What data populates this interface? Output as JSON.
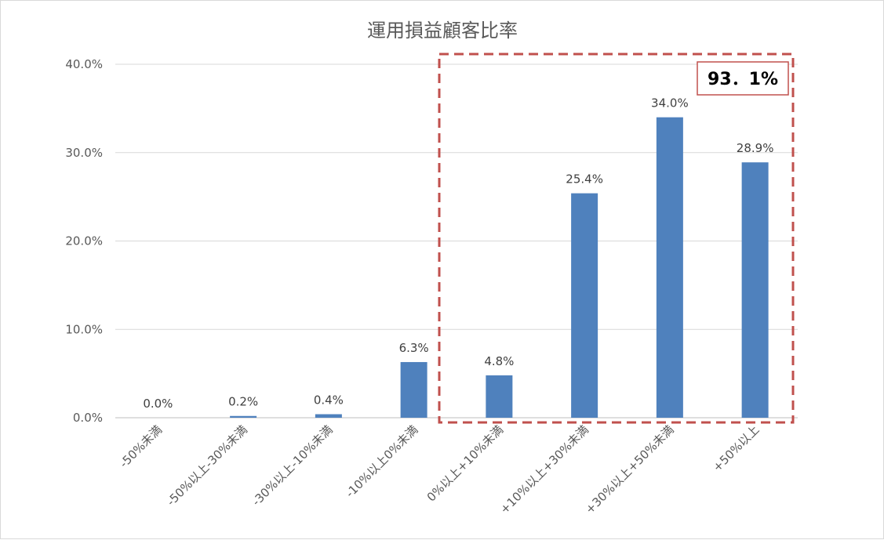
{
  "chart_data": {
    "type": "bar",
    "title": "運用損益顧客比率",
    "categories": [
      "-50%未満",
      "-50%以上-30%未満",
      "-30%以上-10%未満",
      "-10%以上0%未満",
      "0%以上+10%未満",
      "+10%以上+30%未満",
      "+30%以上+50%未満",
      "+50%以上"
    ],
    "values": [
      0.0,
      0.2,
      0.4,
      6.3,
      4.8,
      25.4,
      34.0,
      28.9
    ],
    "data_labels": [
      "0.0%",
      "0.2%",
      "0.4%",
      "6.3%",
      "4.8%",
      "25.4%",
      "34.0%",
      "28.9%"
    ],
    "ylim": [
      0,
      40
    ],
    "yticks": [
      0,
      10,
      20,
      30,
      40
    ],
    "ytick_labels": [
      "0.0%",
      "10.0%",
      "20.0%",
      "30.0%",
      "40.0%"
    ],
    "xlabel": "",
    "ylabel": "",
    "grid": true,
    "bar_color": "#4f81bd",
    "highlight": {
      "from_category": 4,
      "to_category": 7,
      "label": "93．1%",
      "color": "#c0504d"
    }
  }
}
